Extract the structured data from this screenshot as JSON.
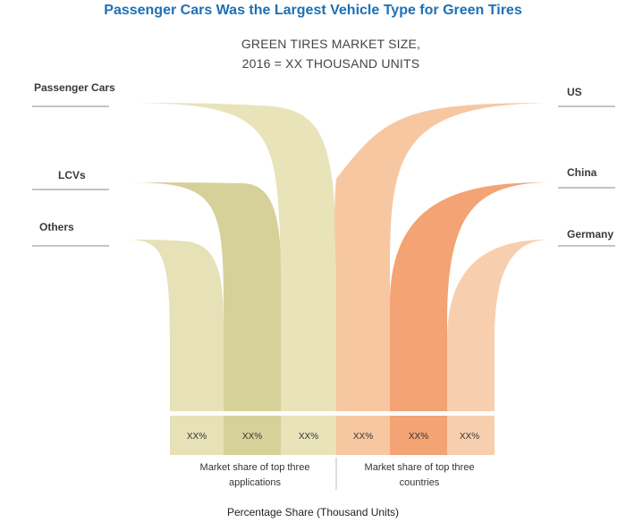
{
  "title": "Passenger Cars Was the Largest Vehicle Type for Green Tires",
  "subtitle_line1": "GREEN TIRES MARKET SIZE,",
  "subtitle_line2": "2016 = XX THOUSAND UNITS",
  "applications": {
    "labels": [
      "Passenger Cars",
      "LCVs",
      "Others"
    ],
    "colors": [
      "#e8e3b9",
      "#d6d198",
      "#e6e1b6"
    ]
  },
  "countries": {
    "labels": [
      "US",
      "China",
      "Germany"
    ],
    "colors": [
      "#f7c7a2",
      "#f3a374",
      "#f8cfae"
    ]
  },
  "percentages": [
    "XX%",
    "XX%",
    "XX%",
    "XX%",
    "XX%",
    "XX%"
  ],
  "captions": {
    "left_line1": "Market share of top three",
    "left_line2": "applications",
    "right_line1": "Market share of top three",
    "right_line2": "countries"
  },
  "axis_title": "Percentage Share (Thousand Units)"
}
